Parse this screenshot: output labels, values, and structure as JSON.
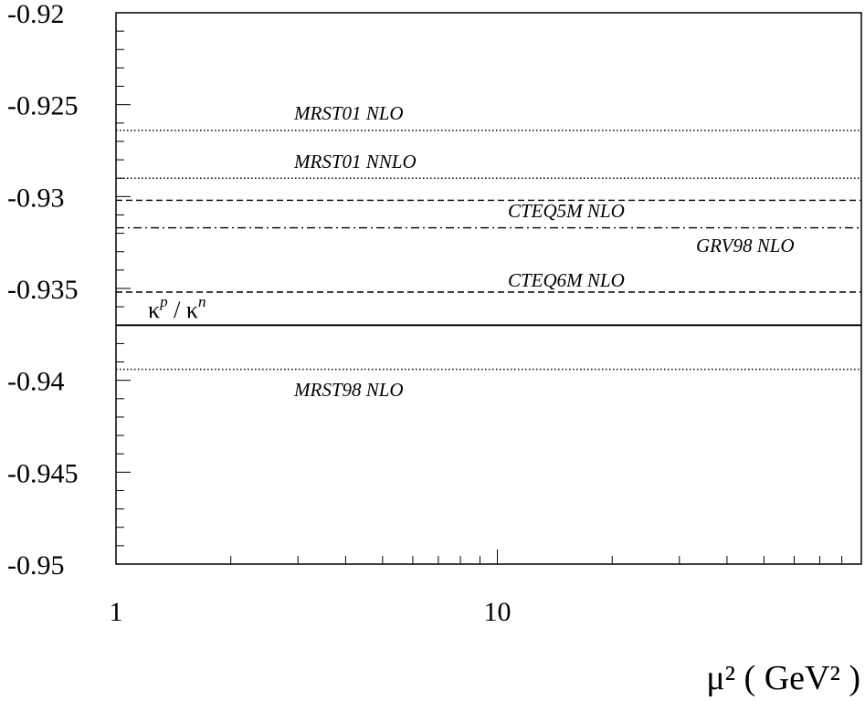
{
  "chart_data": {
    "type": "line",
    "title": "",
    "xlabel": "μ² ( GeV² )",
    "ylabel": "",
    "x_scale": "log",
    "xlim": [
      1,
      90
    ],
    "ylim": [
      -0.95,
      -0.92
    ],
    "grid": false,
    "x_tick_labels": [
      {
        "value": 1,
        "label": "1"
      },
      {
        "value": 10,
        "label": "10"
      }
    ],
    "y_tick_labels": [
      {
        "value": -0.92,
        "label": "-0.92"
      },
      {
        "value": -0.925,
        "label": "-0.925"
      },
      {
        "value": -0.93,
        "label": "-0.93"
      },
      {
        "value": -0.935,
        "label": "-0.935"
      },
      {
        "value": -0.94,
        "label": "-0.94"
      },
      {
        "value": -0.945,
        "label": "-0.945"
      },
      {
        "value": -0.95,
        "label": "-0.95"
      }
    ],
    "ratio_label": {
      "base": "κ",
      "sup1": "p",
      "sep": " / ",
      "sup2": "n"
    },
    "series": [
      {
        "name": "MRST01 NLO",
        "style": "dotted",
        "x": [
          1,
          90
        ],
        "y": [
          -0.9264,
          -0.9264
        ]
      },
      {
        "name": "MRST01 NNLO",
        "style": "dotted",
        "x": [
          1,
          90
        ],
        "y": [
          -0.929,
          -0.929
        ]
      },
      {
        "name": "CTEQ5M NLO",
        "style": "dashed",
        "x": [
          1,
          90
        ],
        "y": [
          -0.9302,
          -0.9302
        ]
      },
      {
        "name": "GRV98 NLO",
        "style": "dashdot",
        "x": [
          1,
          90
        ],
        "y": [
          -0.9317,
          -0.9317
        ]
      },
      {
        "name": "CTEQ6M NLO",
        "style": "dashed",
        "x": [
          1,
          90
        ],
        "y": [
          -0.9352,
          -0.9352
        ]
      },
      {
        "name": "",
        "style": "solid",
        "x": [
          1,
          90
        ],
        "y": [
          -0.937,
          -0.937
        ]
      },
      {
        "name": "MRST98 NLO",
        "style": "dotted",
        "x": [
          1,
          90
        ],
        "y": [
          -0.9394,
          -0.9394
        ]
      }
    ]
  }
}
